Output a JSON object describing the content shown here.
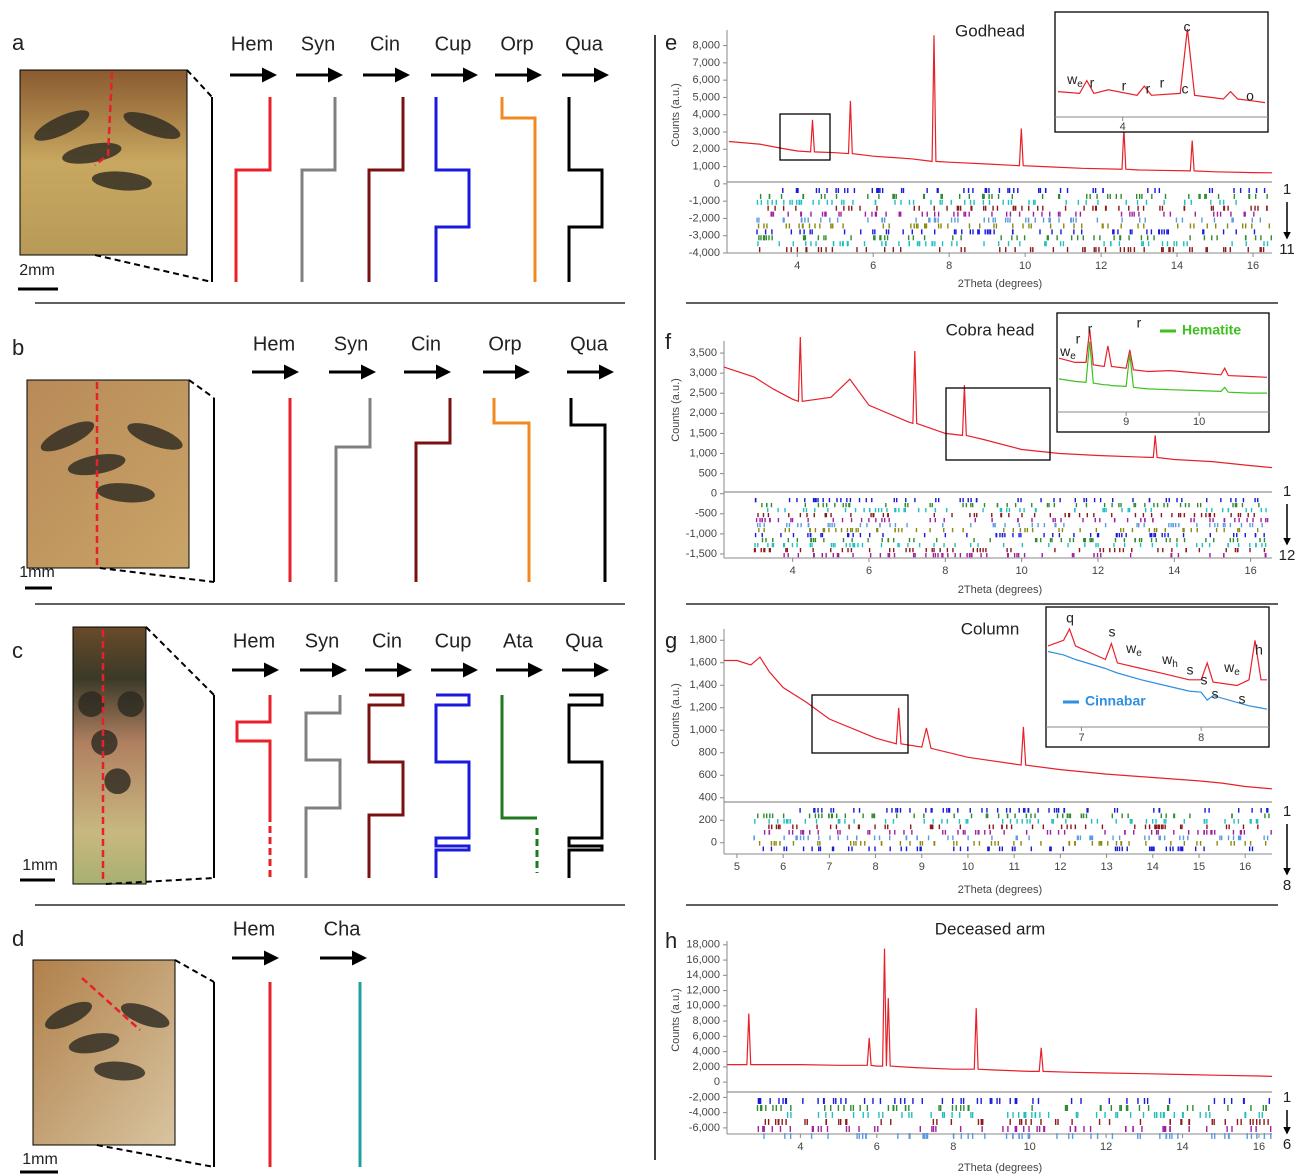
{
  "panels": [
    {
      "label": "a",
      "scale_bar": "2mm",
      "phases": [
        "Hem",
        "Syn",
        "Cin",
        "Cup",
        "Orp",
        "Qua"
      ]
    },
    {
      "label": "b",
      "scale_bar": "1mm",
      "phases": [
        "Hem",
        "Syn",
        "Cin",
        "Orp",
        "Qua"
      ]
    },
    {
      "label": "c",
      "scale_bar": "1mm",
      "phases": [
        "Hem",
        "Syn",
        "Cin",
        "Cup",
        "Ata",
        "Qua"
      ]
    },
    {
      "label": "d",
      "scale_bar": "1mm",
      "phases": [
        "Hem",
        "Cha"
      ]
    }
  ],
  "chart_data": [
    {
      "type": "line",
      "panel": "e",
      "title": "Godhead",
      "x_label": "2Theta (degrees)",
      "y_label": "Counts (a.u.)",
      "xlim": [
        2.15,
        16.5
      ],
      "xticks": [
        4,
        6,
        8,
        10,
        12,
        14,
        16
      ],
      "ylim": [
        -4000,
        8900
      ],
      "yticks": [
        {
          "value": -4000,
          "label": "-4,000"
        },
        {
          "value": -3000,
          "label": "-3,000"
        },
        {
          "value": -2000,
          "label": "-2,000"
        },
        {
          "value": -1000,
          "label": "-1,000"
        },
        0,
        {
          "value": 1000,
          "label": "1,000"
        },
        {
          "value": 2000,
          "label": "2,000"
        },
        {
          "value": 3000,
          "label": "3,000"
        },
        {
          "value": 4000,
          "label": "4,000"
        },
        {
          "value": 5000,
          "label": "5,000"
        },
        {
          "value": 6000,
          "label": "6,000"
        },
        {
          "value": 7000,
          "label": "7,000"
        },
        {
          "value": 8000,
          "label": "8,000"
        }
      ],
      "x": [
        2.2,
        3,
        3.6,
        4,
        4.35,
        4.4,
        4.45,
        5,
        5.35,
        5.4,
        5.45,
        6,
        7,
        7.55,
        7.6,
        7.65,
        8,
        9,
        9.85,
        9.9,
        9.95,
        10.5,
        11.5,
        12.55,
        12.6,
        12.65,
        13,
        14.35,
        14.4,
        14.45,
        15,
        16,
        16.5
      ],
      "series": [
        {
          "color": "#e8202a",
          "values": [
            2450,
            2300,
            2050,
            1900,
            1850,
            3700,
            1850,
            1800,
            1750,
            4800,
            1750,
            1600,
            1450,
            1300,
            8600,
            1300,
            1250,
            1150,
            1050,
            3200,
            1050,
            1000,
            900,
            850,
            3200,
            850,
            800,
            750,
            2500,
            750,
            700,
            650,
            640
          ]
        }
      ],
      "phase_rows": [
        1,
        11
      ],
      "inset": {
        "xlim": [
          3.55,
          4.99
        ],
        "xticks": [
          4
        ],
        "ylim": [
          1500,
          4000
        ],
        "x": [
          3.55,
          3.7,
          3.75,
          3.8,
          3.9,
          4.1,
          4.15,
          4.2,
          4.4,
          4.45,
          4.5,
          4.6,
          4.7,
          4.75,
          4.8,
          4.9,
          4.99
        ],
        "series": [
          {
            "color": "#e8202a",
            "values": [
              2000,
              1950,
              2300,
              1950,
              2050,
              1900,
              2150,
              1900,
              1950,
              3700,
              1900,
              1850,
              1800,
              2000,
              1800,
              1750,
              1700
            ]
          }
        ],
        "peak_labels": [
          {
            "text": "w",
            "sub": "e"
          },
          "r",
          "r",
          "r",
          "r",
          "c",
          "c",
          "o"
        ]
      }
    },
    {
      "type": "line",
      "panel": "f",
      "title": "Cobra head",
      "x_label": "2Theta (degrees)",
      "y_label": "Counts (a.u.)",
      "xlim": [
        2.2,
        16.56
      ],
      "xticks": [
        4,
        6,
        8,
        10,
        12,
        14,
        16
      ],
      "ylim": [
        -1600,
        3800
      ],
      "yticks": [
        {
          "value": -1500,
          "label": "-1,500"
        },
        {
          "value": -1000,
          "label": "-1,000"
        },
        -500,
        0,
        500,
        {
          "value": 1000,
          "label": "1,000"
        },
        {
          "value": 1500,
          "label": "1,500"
        },
        {
          "value": 2000,
          "label": "2,000"
        },
        {
          "value": 2500,
          "label": "2,500"
        },
        {
          "value": 3000,
          "label": "3,000"
        },
        {
          "value": 3500,
          "label": "3,500"
        }
      ],
      "x": [
        2.2,
        3,
        3.5,
        4,
        4.15,
        4.2,
        4.25,
        5,
        5.5,
        6,
        7,
        7.15,
        7.2,
        7.25,
        8,
        8.45,
        8.5,
        8.55,
        9,
        10,
        11,
        12,
        13.45,
        13.5,
        13.55,
        14,
        15,
        16,
        16.56
      ],
      "series": [
        {
          "color": "#e8202a",
          "values": [
            3150,
            2900,
            2600,
            2350,
            2300,
            3900,
            2300,
            2400,
            2850,
            2200,
            1800,
            1750,
            3550,
            1750,
            1500,
            1450,
            2700,
            1450,
            1350,
            1100,
            1000,
            950,
            900,
            1450,
            900,
            850,
            800,
            700,
            650
          ]
        }
      ],
      "phase_rows": [
        1,
        12
      ],
      "inset": {
        "xlim": [
          8.08,
          10.93
        ],
        "xticks": [
          9,
          10
        ],
        "ylim": [
          0,
          10
        ],
        "x": [
          8.08,
          8.3,
          8.45,
          8.5,
          8.55,
          8.7,
          8.75,
          8.8,
          9,
          9.05,
          9.1,
          9.3,
          9.6,
          10,
          10.3,
          10.35,
          10.4,
          10.7,
          10.93
        ],
        "series": [
          {
            "color": "#e8202a",
            "values": [
              6,
              5.5,
              5.5,
              9.5,
              5.2,
              5,
              7.5,
              5,
              4.8,
              7,
              4.6,
              4.4,
              4.5,
              4.2,
              4,
              4.8,
              3.9,
              3.8,
              3.7
            ]
          },
          {
            "name": "Hematite",
            "color": "#3cc21e",
            "values": [
              3.5,
              3.2,
              3.1,
              8,
              3,
              2.8,
              2.8,
              2.7,
              2.6,
              6.5,
              2.5,
              2.3,
              2.2,
              2.1,
              2,
              2.5,
              1.9,
              1.8,
              1.8
            ]
          }
        ],
        "peak_labels": [
          {
            "text": "w",
            "sub": "e"
          },
          "r",
          "r",
          "r"
        ]
      }
    },
    {
      "type": "line",
      "panel": "g",
      "title": "Column",
      "x_label": "2Theta (degrees)",
      "y_label": "Counts (a.u.)",
      "xlim": [
        4.72,
        16.58
      ],
      "xticks": [
        5,
        6,
        7,
        8,
        9,
        10,
        11,
        12,
        13,
        14,
        15,
        16
      ],
      "ylim": [
        -100,
        1900
      ],
      "yticks": [
        0,
        200,
        400,
        600,
        800,
        {
          "value": 1000,
          "label": "1,000"
        },
        {
          "value": 1200,
          "label": "1,200"
        },
        {
          "value": 1400,
          "label": "1,400"
        },
        {
          "value": 1600,
          "label": "1,600"
        },
        {
          "value": 1800,
          "label": "1,800"
        }
      ],
      "x": [
        4.72,
        5,
        5.3,
        5.5,
        5.7,
        6,
        6.5,
        7,
        8,
        8.45,
        8.5,
        8.55,
        9,
        9.1,
        9.2,
        10,
        11,
        11.15,
        11.2,
        11.25,
        12,
        13,
        14,
        15,
        15.5,
        16,
        16.58
      ],
      "series": [
        {
          "color": "#e8202a",
          "values": [
            1620,
            1620,
            1580,
            1650,
            1520,
            1380,
            1250,
            1100,
            930,
            880,
            1200,
            880,
            850,
            1020,
            840,
            760,
            700,
            690,
            1030,
            690,
            650,
            610,
            580,
            550,
            530,
            500,
            480
          ]
        }
      ],
      "phase_rows": [
        1,
        8
      ],
      "inset": {
        "xlim": [
          6.72,
          8.55
        ],
        "xticks": [
          7,
          8
        ],
        "ylim": [
          1,
          11
        ],
        "x": [
          6.72,
          6.85,
          6.9,
          6.95,
          7.2,
          7.25,
          7.3,
          7.5,
          7.7,
          7.9,
          8.0,
          8.05,
          8.1,
          8.3,
          8.4,
          8.45,
          8.5,
          8.55
        ],
        "series": [
          {
            "color": "#e8202a",
            "values": [
              8,
              8.5,
              9.5,
              8,
              6.8,
              8.2,
              6.5,
              6,
              5.5,
              5,
              5,
              6.5,
              4.8,
              4.5,
              5,
              8.5,
              5,
              5
            ]
          },
          {
            "name": "Cinnabar",
            "color": "#2f8fe0",
            "values": [
              7.5,
              7.2,
              7,
              6.8,
              6,
              5.8,
              5.6,
              5,
              4.5,
              4,
              3.9,
              3.2,
              3.6,
              3,
              2.7,
              2.6,
              2.5,
              2.4
            ]
          }
        ],
        "peak_labels": [
          "q",
          "s",
          {
            "text": "w",
            "sub": "e"
          },
          {
            "text": "w",
            "sub": "h"
          },
          "s",
          "s",
          "s",
          {
            "text": "w",
            "sub": "e"
          },
          "s",
          "h"
        ]
      }
    },
    {
      "type": "line",
      "panel": "h",
      "title": "Deceased arm",
      "x_label": "2Theta (degrees)",
      "y_label": "Counts (a.u.)",
      "xlim": [
        2.08,
        16.34
      ],
      "xticks": [
        4,
        6,
        8,
        10,
        12,
        14,
        16
      ],
      "ylim": [
        -6800,
        18500
      ],
      "yticks": [
        {
          "value": -6000,
          "label": "-6,000"
        },
        {
          "value": -4000,
          "label": "-4,000"
        },
        {
          "value": -2000,
          "label": "-2,000"
        },
        0,
        {
          "value": 2000,
          "label": "2,000"
        },
        {
          "value": 4000,
          "label": "4,000"
        },
        {
          "value": 6000,
          "label": "6,000"
        },
        {
          "value": 8000,
          "label": "8,000"
        },
        {
          "value": 10000,
          "label": "10,000"
        },
        {
          "value": 12000,
          "label": "12,000"
        },
        {
          "value": 14000,
          "label": "14,000"
        },
        {
          "value": 16000,
          "label": "16,000"
        },
        {
          "value": 18000,
          "label": "18,000"
        }
      ],
      "x": [
        2.08,
        2.6,
        2.65,
        2.7,
        3,
        4,
        5,
        5.75,
        5.8,
        5.85,
        6,
        6.15,
        6.2,
        6.25,
        6.3,
        6.35,
        7,
        8,
        8.55,
        8.6,
        8.65,
        9,
        10,
        10.25,
        10.3,
        10.35,
        11,
        12,
        13,
        14,
        15,
        16,
        16.34
      ],
      "series": [
        {
          "color": "#e8202a",
          "values": [
            2300,
            2300,
            9000,
            2300,
            2300,
            2300,
            2200,
            2200,
            5800,
            2200,
            2100,
            2100,
            17500,
            2100,
            11000,
            2100,
            1900,
            1700,
            1700,
            9700,
            1700,
            1600,
            1400,
            1400,
            4500,
            1400,
            1300,
            1200,
            1100,
            1000,
            900,
            800,
            750
          ]
        }
      ],
      "phase_rows": [
        1,
        6
      ]
    }
  ]
}
